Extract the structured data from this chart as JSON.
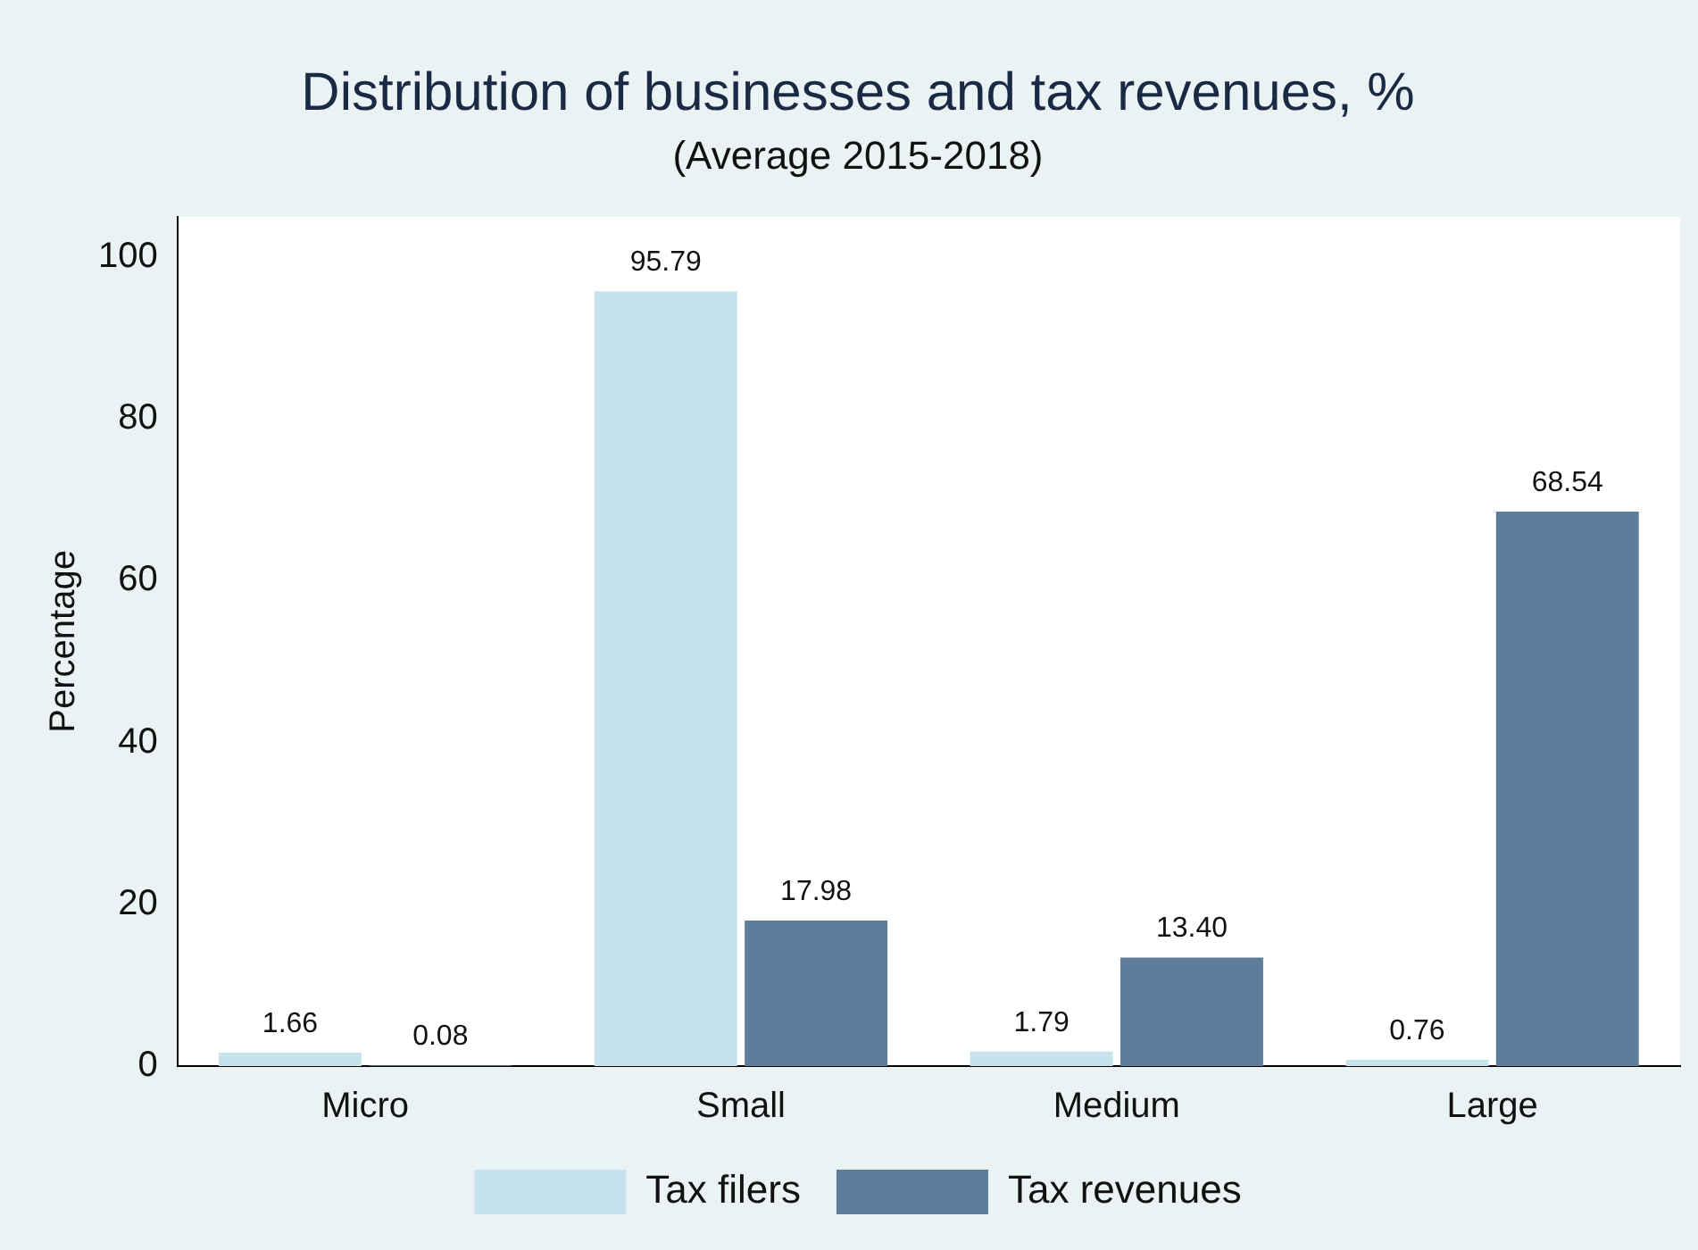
{
  "chart_data": {
    "type": "bar",
    "title": "Distribution of businesses and tax revenues, %",
    "subtitle": "(Average 2015-2018)",
    "ylabel": "Percentage",
    "categories": [
      "Micro",
      "Small",
      "Medium",
      "Large"
    ],
    "series": [
      {
        "name": "Tax filers",
        "color": "#c6e3ed",
        "values": [
          1.66,
          95.79,
          1.79,
          0.76
        ],
        "value_labels": [
          "1.66",
          "95.79",
          "1.79",
          "0.76"
        ]
      },
      {
        "name": "Tax revenues",
        "color": "#5e7d9a",
        "values": [
          0.08,
          17.98,
          13.4,
          68.54
        ],
        "value_labels": [
          "0.08",
          "17.98",
          "13.40",
          "68.54"
        ]
      }
    ],
    "ylim": [
      0,
      105
    ],
    "yticks": [
      0,
      20,
      40,
      60,
      80,
      100
    ],
    "legend": "bottom"
  }
}
